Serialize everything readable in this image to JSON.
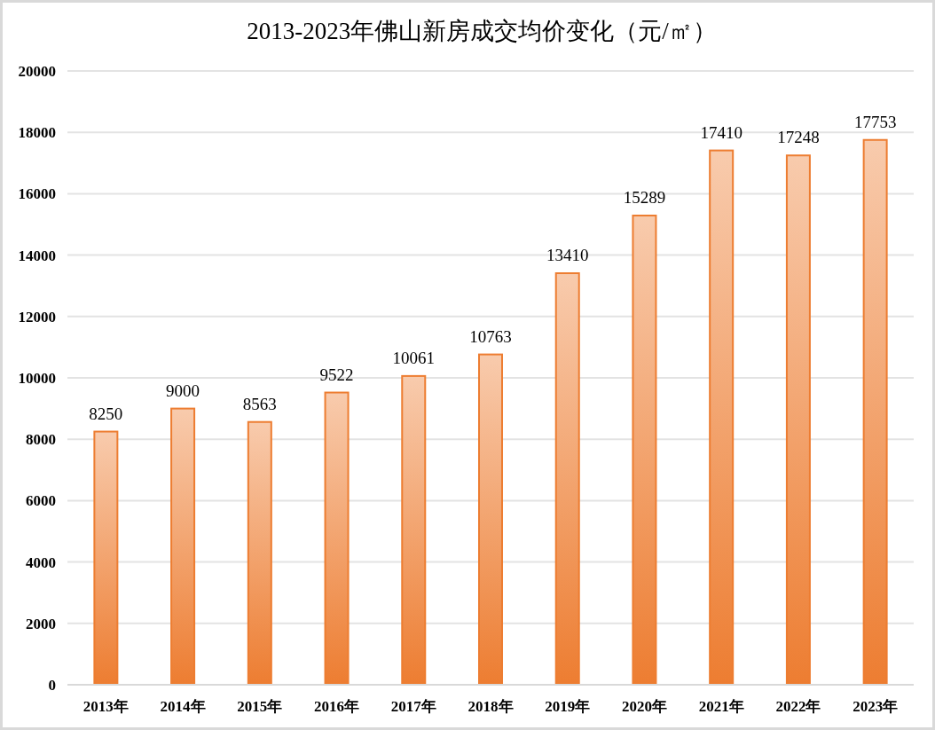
{
  "chart_data": {
    "type": "bar",
    "title": "2013-2023年佛山新房成交均价变化（元/㎡）",
    "categories": [
      "2013年",
      "2014年",
      "2015年",
      "2016年",
      "2017年",
      "2018年",
      "2019年",
      "2020年",
      "2021年",
      "2022年",
      "2023年"
    ],
    "values": [
      8250,
      9000,
      8563,
      9522,
      10061,
      10763,
      13410,
      15289,
      17410,
      17248,
      17753
    ],
    "color": "#ed7d31",
    "ylim": [
      0,
      20000
    ],
    "yticks": [
      0,
      2000,
      4000,
      6000,
      8000,
      10000,
      12000,
      14000,
      16000,
      18000,
      20000
    ],
    "grid": "y",
    "data_labels": true
  }
}
